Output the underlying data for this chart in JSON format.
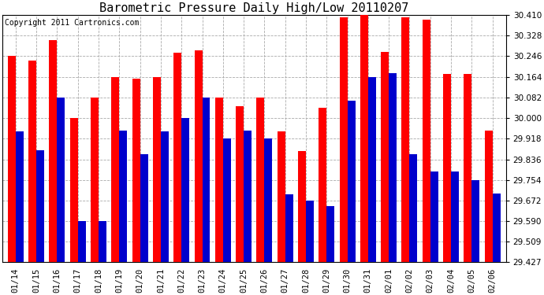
{
  "title": "Barometric Pressure Daily High/Low 20110207",
  "copyright": "Copyright 2011 Cartronics.com",
  "dates": [
    "01/14",
    "01/15",
    "01/16",
    "01/17",
    "01/18",
    "01/19",
    "01/20",
    "01/21",
    "01/22",
    "01/23",
    "01/24",
    "01/25",
    "01/26",
    "01/27",
    "01/28",
    "01/29",
    "01/30",
    "01/31",
    "02/01",
    "02/02",
    "02/03",
    "02/04",
    "02/05",
    "02/06"
  ],
  "highs": [
    30.246,
    30.23,
    30.31,
    30.0,
    30.082,
    30.164,
    30.158,
    30.164,
    30.26,
    30.27,
    30.082,
    30.046,
    30.082,
    29.946,
    29.869,
    30.041,
    30.4,
    30.41,
    30.262,
    30.4,
    30.39,
    30.175,
    30.175,
    29.95
  ],
  "lows": [
    29.946,
    29.872,
    30.082,
    29.59,
    29.59,
    29.95,
    29.856,
    29.946,
    30.0,
    30.082,
    29.918,
    29.95,
    29.918,
    29.698,
    29.672,
    29.65,
    30.069,
    30.164,
    30.18,
    29.856,
    29.787,
    29.787,
    29.754,
    29.7
  ],
  "high_color": "#ff0000",
  "low_color": "#0000cc",
  "bg_color": "#ffffff",
  "grid_color": "#aaaaaa",
  "ylim_min": 29.427,
  "ylim_max": 30.41,
  "yticks": [
    29.427,
    29.509,
    29.59,
    29.672,
    29.754,
    29.836,
    29.918,
    30.0,
    30.082,
    30.164,
    30.246,
    30.328,
    30.41
  ],
  "title_fontsize": 11,
  "copyright_fontsize": 7,
  "tick_fontsize": 7.5,
  "bar_width": 0.38
}
